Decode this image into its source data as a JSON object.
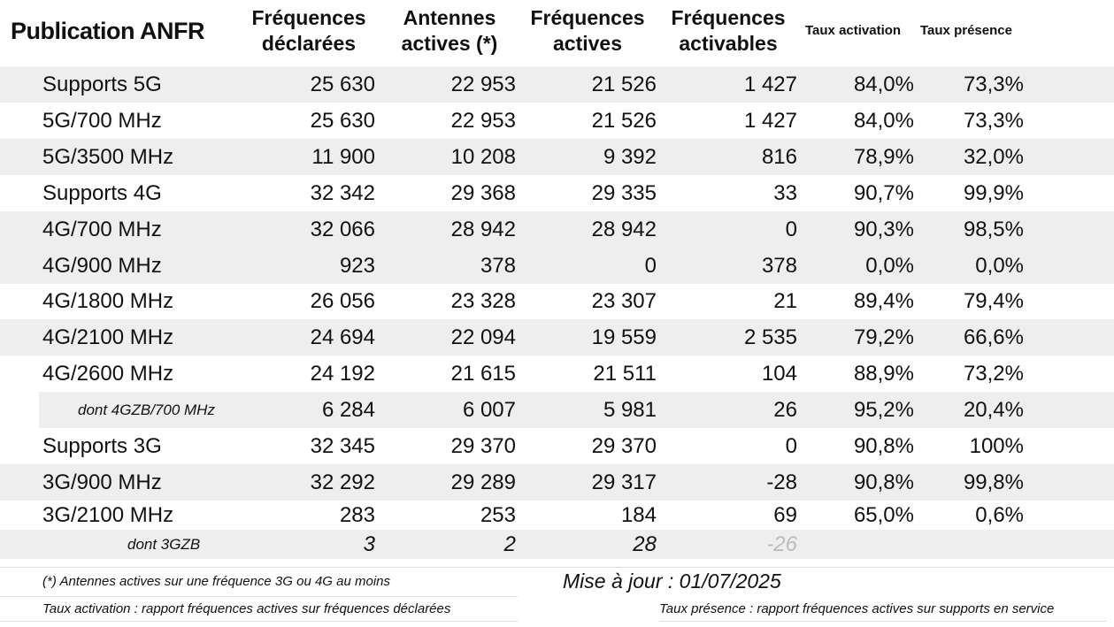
{
  "header": {
    "title": "Publication ANFR",
    "col_declared": [
      "Fréquences",
      "déclarées"
    ],
    "col_antennas": [
      "Antennes",
      "actives (*)"
    ],
    "col_active": [
      "Fréquences",
      "actives"
    ],
    "col_activable": [
      "Fréquences",
      "activables"
    ],
    "col_activation": "Taux activation",
    "col_presence": "Taux présence"
  },
  "rows": [
    {
      "type": "support",
      "label": "Supports 5G",
      "declared": "25 630",
      "antennas": "22 953",
      "active": "21 526",
      "activable": "1 427",
      "activation": "84,0%",
      "presence": "73,3%"
    },
    {
      "type": "band",
      "label": "5G/700 MHz",
      "declared": "25 630",
      "antennas": "22 953",
      "active": "21 526",
      "activable": "1 427",
      "activation": "84,0%",
      "presence": "73,3%"
    },
    {
      "type": "band",
      "label": "5G/3500 MHz",
      "declared": "11 900",
      "antennas": "10 208",
      "active": "9 392",
      "activable": "816",
      "activation": "78,9%",
      "presence": "32,0%"
    },
    {
      "type": "support",
      "label": "Supports 4G",
      "declared": "32 342",
      "antennas": "29 368",
      "active": "29 335",
      "activable": "33",
      "activation": "90,7%",
      "presence": "99,9%"
    },
    {
      "type": "band",
      "label": "4G/700 MHz",
      "declared": "32 066",
      "antennas": "28 942",
      "active": "28 942",
      "activable": "0",
      "activation": "90,3%",
      "presence": "98,5%"
    },
    {
      "type": "band",
      "label": "4G/900 MHz",
      "declared": "923",
      "antennas": "378",
      "active": "0",
      "activable": "378",
      "activation": "0,0%",
      "presence": "0,0%"
    },
    {
      "type": "band",
      "label": "4G/1800 MHz",
      "declared": "26 056",
      "antennas": "23 328",
      "active": "23 307",
      "activable": "21",
      "activation": "89,4%",
      "presence": "79,4%"
    },
    {
      "type": "band",
      "label": "4G/2100 MHz",
      "declared": "24 694",
      "antennas": "22 094",
      "active": "19 559",
      "activable": "2 535",
      "activation": "79,2%",
      "presence": "66,6%"
    },
    {
      "type": "band",
      "label": "4G/2600 MHz",
      "declared": "24 192",
      "antennas": "21 615",
      "active": "21 511",
      "activable": "104",
      "activation": "88,9%",
      "presence": "73,2%"
    },
    {
      "type": "sub",
      "label": "dont 4GZB/700 MHz",
      "declared": "6 284",
      "antennas": "6 007",
      "active": "5 981",
      "activable": "26",
      "activation": "95,2%",
      "presence": "20,4%"
    },
    {
      "type": "support",
      "label": "Supports 3G",
      "declared": "32 345",
      "antennas": "29 370",
      "active": "29 370",
      "activable": "0",
      "activation": "90,8%",
      "presence": "100%"
    },
    {
      "type": "band",
      "label": "3G/900 MHz",
      "declared": "32 292",
      "antennas": "29 289",
      "active": "29 317",
      "activable": "-28",
      "activation": "90,8%",
      "presence": "99,8%"
    },
    {
      "type": "band",
      "label": "3G/2100 MHz",
      "declared": "283",
      "antennas": "253",
      "active": "184",
      "activable": "69",
      "activation": "65,0%",
      "presence": "0,6%"
    },
    {
      "type": "zb",
      "label": "dont 3GZB",
      "declared": "3",
      "antennas": "2",
      "active": "28",
      "activable": "-26",
      "activation": "",
      "presence": ""
    }
  ],
  "footer": {
    "note_antennas": "(*) Antennes actives sur une fréquence 3G ou 4G au moins",
    "update": "Mise à jour : 01/07/2025",
    "note_activation": "Taux activation : rapport fréquences actives sur fréquences déclarées",
    "note_presence": "Taux présence : rapport fréquences actives sur supports en service"
  }
}
